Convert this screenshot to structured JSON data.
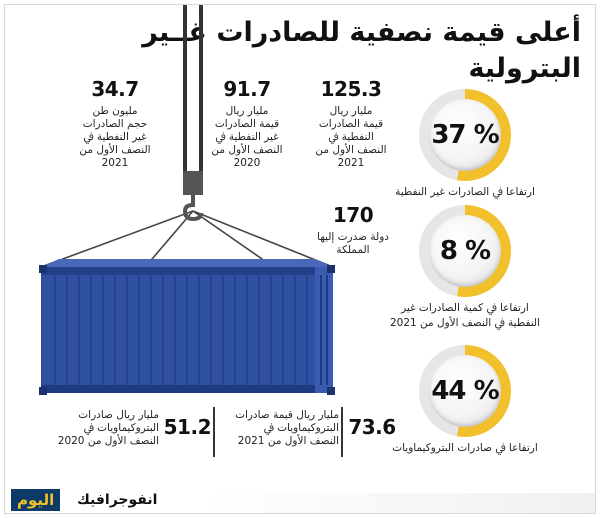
{
  "title": "أعلى قيمة نصفية للصادرات غــير البترولية",
  "stats_top": [
    {
      "value": "125.3",
      "desc": "مليار ريال\nقيمة الصادرات\nالنفطية ﰲ\nالنصف الأول من\n2021"
    },
    {
      "value": "91.7",
      "desc": "مليار ريال\nقيمة الصادرات\nغير النفطية ﰲ\nالنصف الأول من\n2020"
    },
    {
      "value": "34.7",
      "desc": "مليون طن\nحجم الصادرات\nغير النفطية ﰲ\nالنصف الأول من\n2021"
    }
  ],
  "stat_countries": {
    "value": "170",
    "desc": "دولة صدرت إليها\nالمملكة"
  },
  "stats_bottom": [
    {
      "value": "73.6",
      "desc": "مليار ريال قيمة صادرات\nالبتروكيماويات ﰲ\nالنصف الأول من 2021"
    },
    {
      "value": "51.2",
      "desc": "مليار ريال صادرات\nالبتروكيماويات ﰲ\nالنصف الأول من 2020"
    }
  ],
  "circles": [
    {
      "value": "37 %",
      "label": "ارتفاعا ﰲ الصادرات غير النفطية"
    },
    {
      "value": "8 %",
      "label": "ارتفاعا ﰲ كمية الصادرات غير\nالنفطية ﰲ النصف الأول من 2021"
    },
    {
      "value": "44 %",
      "label": "ارتفاعا ﰲ صادرات البتروكيماويات"
    }
  ],
  "footer": {
    "brand": "اليوم",
    "tag": "انفوجرافيك"
  },
  "colors": {
    "container": "#2f4fa0",
    "accent": "#f2c02a",
    "navy": "#0d3a66"
  }
}
